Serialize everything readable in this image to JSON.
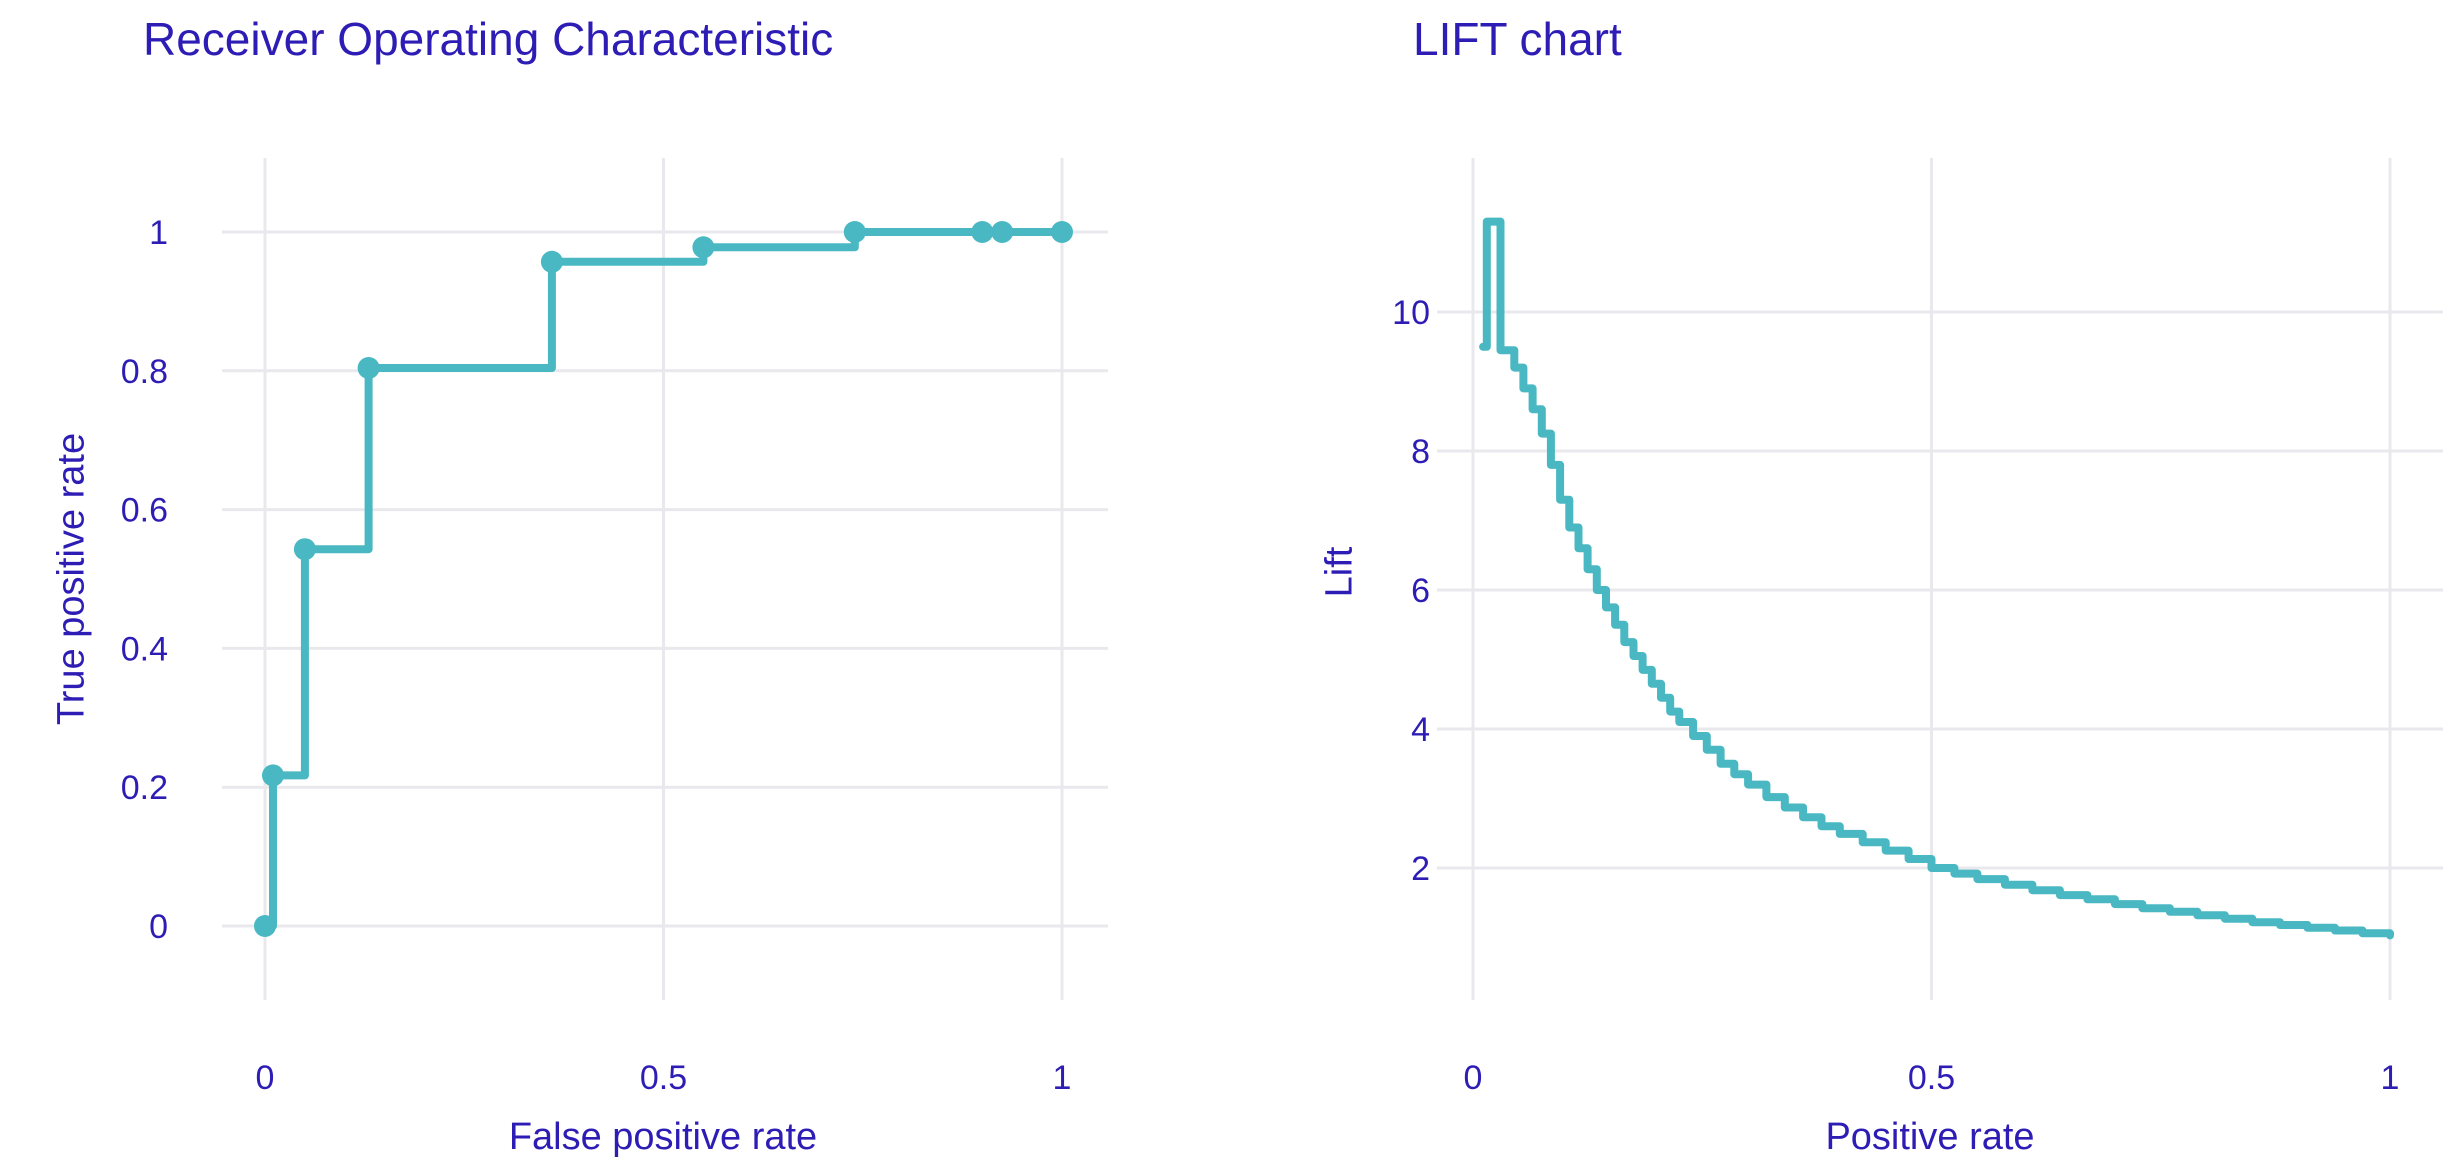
{
  "colors": {
    "background": "#ffffff",
    "text_ink": "#2e1db5",
    "series_teal": "#49b8c2",
    "gridline": "#e9e9ed"
  },
  "chart_data": [
    {
      "type": "line",
      "title": "Receiver Operating Characteristic",
      "xlabel": "False positive rate",
      "ylabel": "True positive rate",
      "line_shape": "hv",
      "markers": true,
      "grid": true,
      "legend": "none",
      "xticks": [
        0,
        0.5,
        1
      ],
      "yticks": [
        0,
        0.2,
        0.4,
        0.6,
        0.8,
        1
      ],
      "xlim": [
        -0.06,
        1.06
      ],
      "ylim": [
        -0.11,
        1.11
      ],
      "points": [
        [
          0,
          0
        ],
        [
          0.01,
          0.217
        ],
        [
          0.05,
          0.543
        ],
        [
          0.13,
          0.804
        ],
        [
          0.36,
          0.957
        ],
        [
          0.55,
          0.978
        ],
        [
          0.74,
          1.0
        ],
        [
          0.9,
          1.0
        ],
        [
          0.925,
          1.0
        ],
        [
          1.0,
          1.0
        ]
      ]
    },
    {
      "type": "line",
      "title": "LIFT chart",
      "xlabel": "Positive rate",
      "ylabel": "Lift",
      "line_shape": "hv",
      "markers": false,
      "grid": true,
      "legend": "none",
      "xticks": [
        0,
        0.5,
        1
      ],
      "yticks": [
        2,
        4,
        6,
        8,
        10
      ],
      "xlim": [
        -0.04,
        1.06
      ],
      "ylim": [
        0.1,
        11.7
      ],
      "points": [
        [
          0.011,
          9.5
        ],
        [
          0.015,
          11.3
        ],
        [
          0.03,
          9.45
        ],
        [
          0.045,
          9.2
        ],
        [
          0.055,
          8.9
        ],
        [
          0.065,
          8.6
        ],
        [
          0.075,
          8.25
        ],
        [
          0.085,
          7.8
        ],
        [
          0.095,
          7.3
        ],
        [
          0.105,
          6.9
        ],
        [
          0.115,
          6.6
        ],
        [
          0.125,
          6.3
        ],
        [
          0.135,
          6.0
        ],
        [
          0.145,
          5.75
        ],
        [
          0.155,
          5.5
        ],
        [
          0.165,
          5.25
        ],
        [
          0.175,
          5.05
        ],
        [
          0.185,
          4.85
        ],
        [
          0.195,
          4.65
        ],
        [
          0.205,
          4.45
        ],
        [
          0.215,
          4.25
        ],
        [
          0.225,
          4.1
        ],
        [
          0.24,
          3.9
        ],
        [
          0.255,
          3.7
        ],
        [
          0.27,
          3.5
        ],
        [
          0.285,
          3.35
        ],
        [
          0.3,
          3.2
        ],
        [
          0.32,
          3.02
        ],
        [
          0.34,
          2.87
        ],
        [
          0.36,
          2.73
        ],
        [
          0.38,
          2.6
        ],
        [
          0.4,
          2.49
        ],
        [
          0.425,
          2.37
        ],
        [
          0.45,
          2.25
        ],
        [
          0.475,
          2.13
        ],
        [
          0.5,
          2.0
        ],
        [
          0.525,
          1.92
        ],
        [
          0.55,
          1.84
        ],
        [
          0.58,
          1.76
        ],
        [
          0.61,
          1.68
        ],
        [
          0.64,
          1.61
        ],
        [
          0.67,
          1.55
        ],
        [
          0.7,
          1.48
        ],
        [
          0.73,
          1.42
        ],
        [
          0.76,
          1.37
        ],
        [
          0.79,
          1.32
        ],
        [
          0.82,
          1.27
        ],
        [
          0.85,
          1.22
        ],
        [
          0.88,
          1.18
        ],
        [
          0.91,
          1.14
        ],
        [
          0.94,
          1.1
        ],
        [
          0.97,
          1.06
        ],
        [
          1.0,
          1.03
        ]
      ]
    }
  ]
}
